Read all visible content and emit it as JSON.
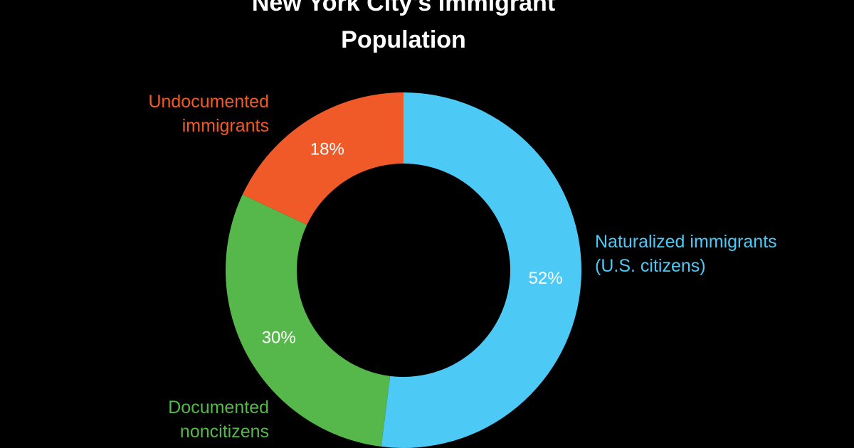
{
  "chart_data": {
    "type": "pie",
    "title": "New York City's Immigrant Population",
    "categories": [
      "Naturalized immigrants (U.S. citizens)",
      "Documented noncitizens",
      "Undocumented immigrants"
    ],
    "values": [
      52,
      30,
      18
    ],
    "value_labels": [
      "52%",
      "30%",
      "18%"
    ],
    "colors": [
      "#4cc9f5",
      "#56b84a",
      "#f05a28"
    ],
    "donut": true
  }
}
